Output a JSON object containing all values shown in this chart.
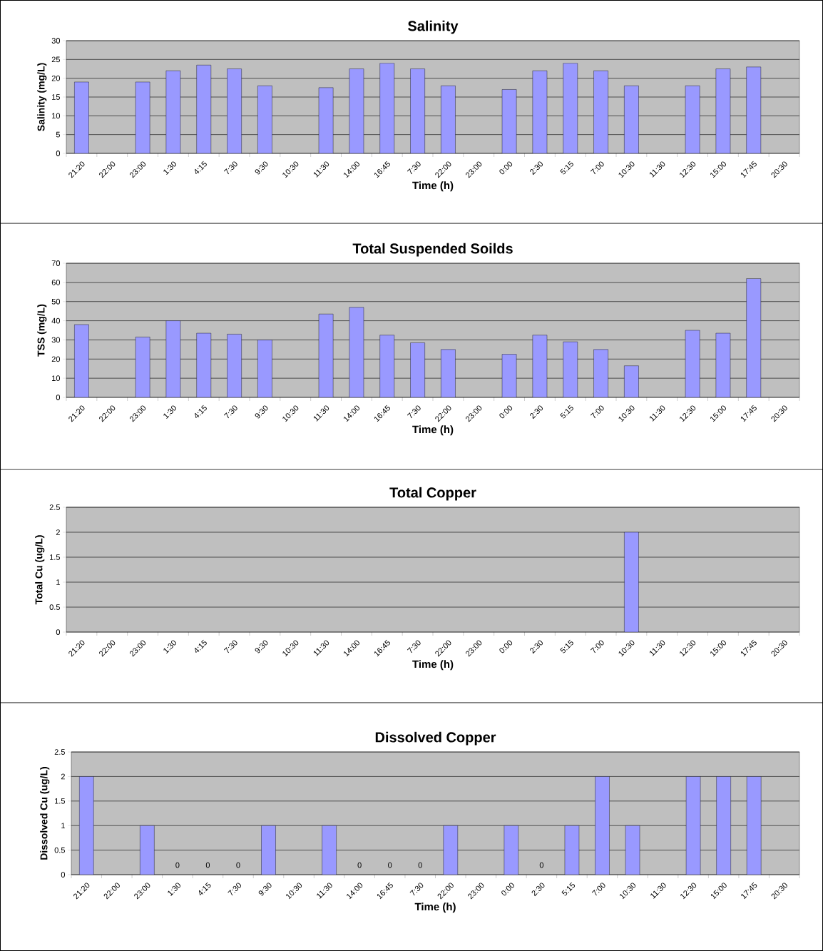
{
  "chart_data": [
    {
      "type": "bar",
      "title": "Salinity",
      "xlabel": "Time (h)",
      "ylabel": "Salinity (mg/L)",
      "categories": [
        "21:20",
        "22:00",
        "23:00",
        "1:30",
        "4:15",
        "7:30",
        "9:30",
        "10:30",
        "11:30",
        "14:00",
        "16:45",
        "7:30",
        "22:00",
        "23:00",
        "0:00",
        "2:30",
        "5:15",
        "7:00",
        "10:30",
        "11:30",
        "12:30",
        "15:00",
        "17:45",
        "20:30"
      ],
      "values": [
        19,
        null,
        19,
        22,
        23.5,
        22.5,
        18,
        null,
        17.5,
        22.5,
        24,
        22.5,
        18,
        null,
        17,
        22,
        24,
        22,
        18,
        null,
        18,
        22.5,
        23,
        null
      ],
      "color": "#9999ff",
      "ylim": [
        0,
        30
      ],
      "yticks": [
        0,
        5,
        10,
        15,
        20,
        25,
        30
      ],
      "grid": "y"
    },
    {
      "type": "bar",
      "title": "Total Suspended Soilds",
      "xlabel": "Time (h)",
      "ylabel": "TSS (mg/L)",
      "categories": [
        "21:20",
        "22:00",
        "23:00",
        "1:30",
        "4:15",
        "7:30",
        "9:30",
        "10:30",
        "11:30",
        "14:00",
        "16:45",
        "7:30",
        "22:00",
        "23:00",
        "0:00",
        "2:30",
        "5:15",
        "7:00",
        "10:30",
        "11:30",
        "12:30",
        "15:00",
        "17:45",
        "20:30"
      ],
      "values": [
        38,
        null,
        31.5,
        40,
        33.5,
        33,
        30,
        null,
        43.5,
        47,
        32.5,
        28.5,
        25,
        null,
        22.5,
        32.5,
        29,
        25,
        16.5,
        null,
        35,
        33.5,
        62,
        null
      ],
      "color": "#9999ff",
      "ylim": [
        0,
        70
      ],
      "yticks": [
        0,
        10,
        20,
        30,
        40,
        50,
        60,
        70
      ],
      "grid": "y"
    },
    {
      "type": "bar",
      "title": "Total Copper",
      "xlabel": "Time (h)",
      "ylabel": "Total Cu (ug/L)",
      "categories": [
        "21:20",
        "22:00",
        "23:00",
        "1:30",
        "4:15",
        "7:30",
        "9:30",
        "10:30",
        "11:30",
        "14:00",
        "16:45",
        "7:30",
        "22:00",
        "23:00",
        "0:00",
        "2:30",
        "5:15",
        "7:00",
        "10:30",
        "11:30",
        "12:30",
        "15:00",
        "17:45",
        "20:30"
      ],
      "values": [
        null,
        null,
        null,
        null,
        null,
        null,
        null,
        null,
        null,
        null,
        null,
        null,
        null,
        null,
        null,
        null,
        null,
        null,
        2,
        null,
        null,
        null,
        null,
        null
      ],
      "color": "#9999ff",
      "ylim": [
        0,
        2.5
      ],
      "yticks": [
        0,
        0.5,
        1,
        1.5,
        2,
        2.5
      ],
      "grid": "y"
    },
    {
      "type": "bar",
      "title": "Dissolved Copper",
      "xlabel": "Time (h)",
      "ylabel": "Dissolved Cu (ug/L)",
      "categories": [
        "21:20",
        "22:00",
        "23:00",
        "1:30",
        "4:15",
        "7:30",
        "9:30",
        "10:30",
        "11:30",
        "14:00",
        "16:45",
        "7:30",
        "22:00",
        "23:00",
        "0:00",
        "2:30",
        "5:15",
        "7:00",
        "10:30",
        "11:30",
        "12:30",
        "15:00",
        "17:45",
        "20:30"
      ],
      "values": [
        2,
        null,
        1,
        0,
        0,
        0,
        1,
        null,
        1,
        0,
        0,
        0,
        1,
        null,
        1,
        0,
        1,
        2,
        1,
        null,
        2,
        2,
        2,
        null
      ],
      "value_labels": [
        null,
        null,
        null,
        "0",
        "0",
        "0",
        null,
        null,
        null,
        "0",
        "0",
        "0",
        null,
        null,
        null,
        "0",
        null,
        null,
        null,
        null,
        null,
        null,
        null,
        null
      ],
      "color": "#9999ff",
      "ylim": [
        0,
        2.5
      ],
      "yticks": [
        0,
        0.5,
        1,
        1.5,
        2,
        2.5
      ],
      "grid": "y"
    }
  ]
}
